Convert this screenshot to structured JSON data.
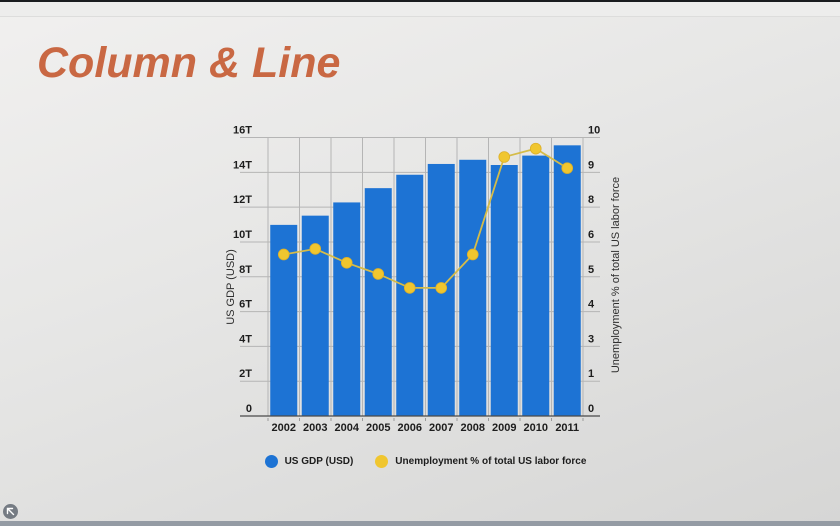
{
  "title": "Column & Line",
  "title_color": "#C96843",
  "chart_data": {
    "type": "combo-column-line",
    "title": "Column & Line",
    "categories": [
      "2002",
      "2003",
      "2004",
      "2005",
      "2006",
      "2007",
      "2008",
      "2009",
      "2010",
      "2011"
    ],
    "series": [
      {
        "name": "US GDP (USD)",
        "type": "column",
        "axis": "left",
        "color": "#1D73D4",
        "values": [
          10.98,
          11.51,
          12.27,
          13.09,
          13.86,
          14.48,
          14.72,
          14.42,
          14.96,
          15.55
        ]
      },
      {
        "name": "Unemployment % of total US labor force",
        "type": "line",
        "axis": "right",
        "color": "#F0C62F",
        "line_color": "#D5BC49",
        "values": [
          5.8,
          6.0,
          5.5,
          5.1,
          4.6,
          4.6,
          5.8,
          9.3,
          9.6,
          8.9
        ]
      }
    ],
    "left_axis": {
      "title": "US GDP (USD)",
      "range": [
        0,
        16
      ],
      "tick_labels": [
        "0",
        "2T",
        "4T",
        "6T",
        "8T",
        "10T",
        "12T",
        "14T",
        "16T"
      ]
    },
    "right_axis": {
      "title": "Unemployment % of total US labor force",
      "range": [
        0,
        10
      ],
      "tick_labels": [
        "0",
        "1",
        "3",
        "4",
        "5",
        "6",
        "8",
        "9",
        "10"
      ]
    },
    "grid": true,
    "legend_position": "bottom"
  },
  "colors": {
    "grid": "#B5B5B5",
    "axis_baseline": "#4A4A4A",
    "tick_text": "#1D1D1D"
  }
}
